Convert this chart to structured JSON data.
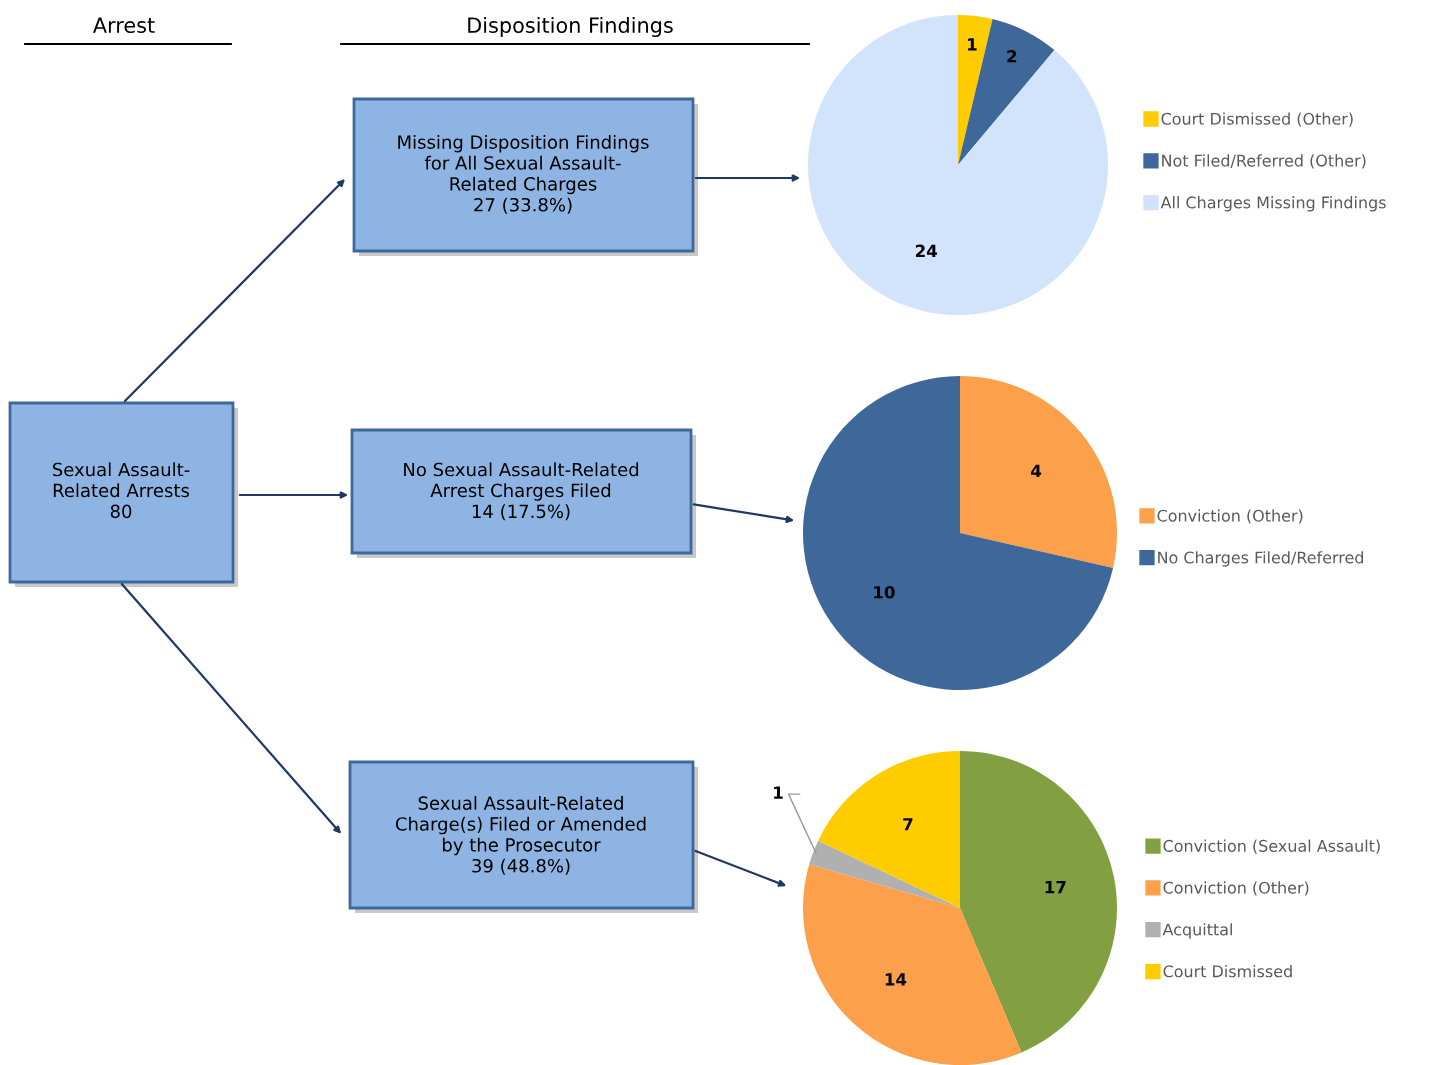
{
  "chart_data": [
    {
      "type": "other",
      "annotations": [
        "Arrest",
        "Disposition Findings",
        "Sexual Assault-\nRelated Arrests\n80",
        "Missing Disposition Findings\nfor All Sexual Assault-\nRelated Charges\n27 (33.8%)",
        "No Sexual Assault-Related\nArrest Charges Filed\n14 (17.5%)",
        "Sexual Assault-Related\nCharge(s) Filed or Amended\nby the Prosecutor\n39 (48.8%)"
      ]
    },
    {
      "type": "pie",
      "categories": [
        "Court Dismissed (Other)",
        "Not Filed/Referred (Other)",
        "All Charges Missing Findings"
      ],
      "values": [
        1,
        2,
        24
      ],
      "colors": [
        "#ffcc00",
        "#3e6899",
        "#d2e4fb"
      ],
      "data_labels": true,
      "legend": "right"
    },
    {
      "type": "pie",
      "categories": [
        "Conviction (Other)",
        "No Charges Filed/Referred"
      ],
      "values": [
        4,
        10
      ],
      "colors": [
        "#fda04b",
        "#3e6899"
      ],
      "data_labels": true,
      "legend": "right"
    },
    {
      "type": "pie",
      "categories": [
        "Conviction (Sexual Assault)",
        "Conviction (Other)",
        "Acquittal",
        "Court Dismissed"
      ],
      "values": [
        17,
        14,
        1,
        7
      ],
      "colors": [
        "#82a042",
        "#fda04b",
        "#b0b0b0",
        "#ffcc00"
      ],
      "data_labels": true,
      "legend": "right"
    }
  ]
}
